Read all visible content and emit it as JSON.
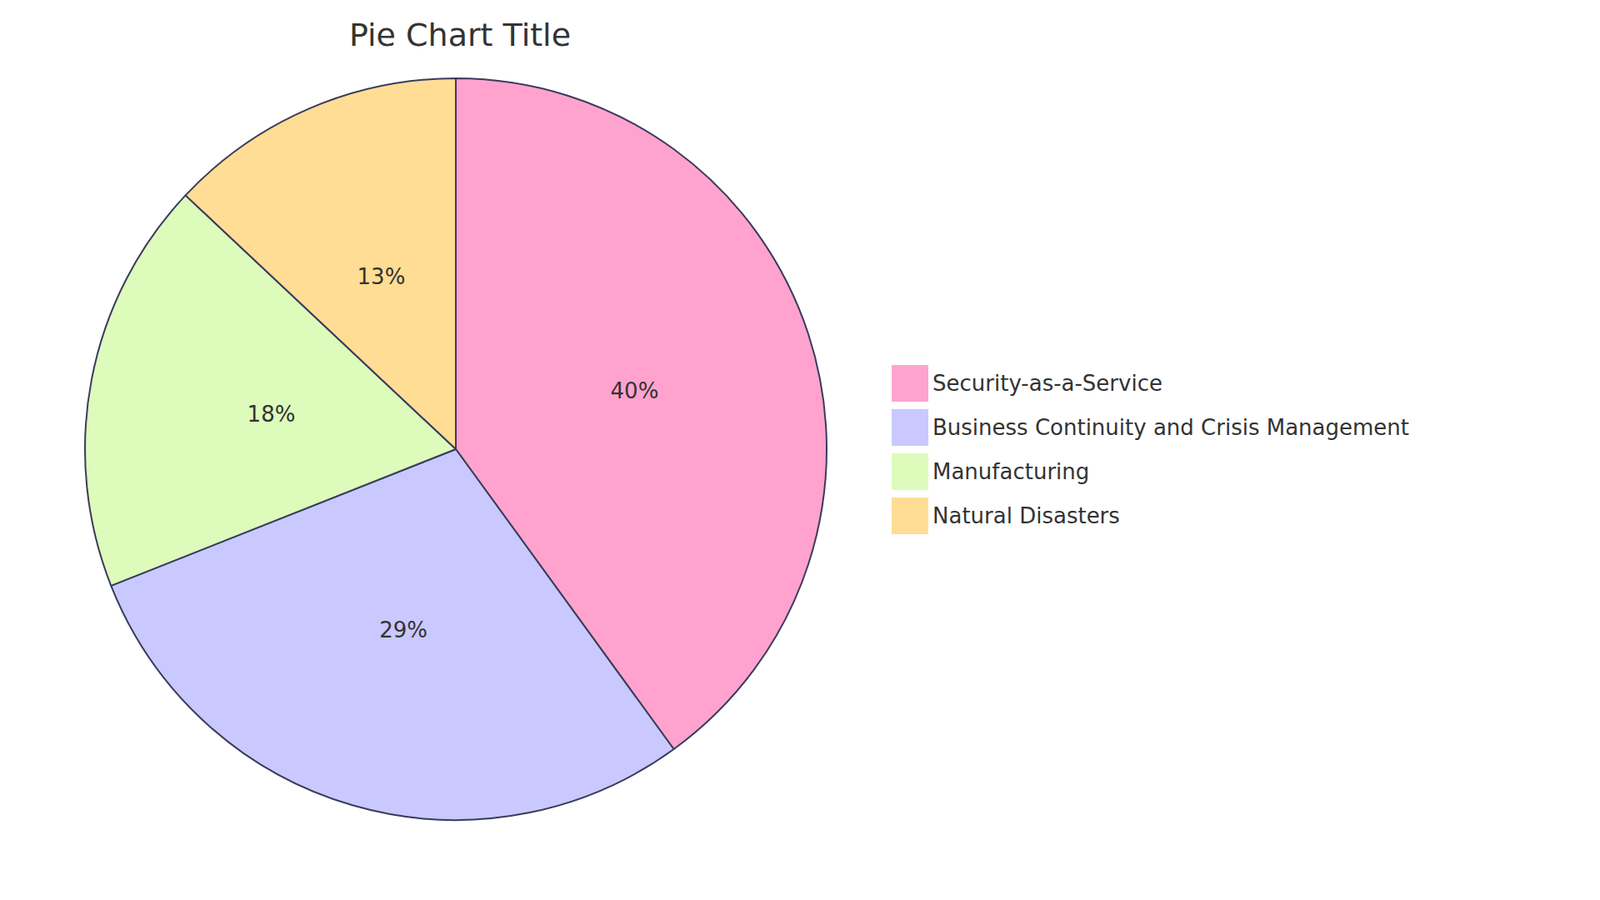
{
  "chart_data": {
    "type": "pie",
    "title": "Pie Chart Title",
    "categories": [
      "Security-as-a-Service",
      "Business Continuity and Crisis Management",
      "Manufacturing",
      "Natural Disasters"
    ],
    "values": [
      40,
      29,
      18,
      13
    ],
    "value_labels": [
      "40%",
      "29%",
      "18%",
      "13%"
    ],
    "colors": [
      "#ffa3ce",
      "#c9c9ff",
      "#ddfbbb",
      "#ffdd94"
    ],
    "data_labels": true,
    "legend": "right"
  }
}
